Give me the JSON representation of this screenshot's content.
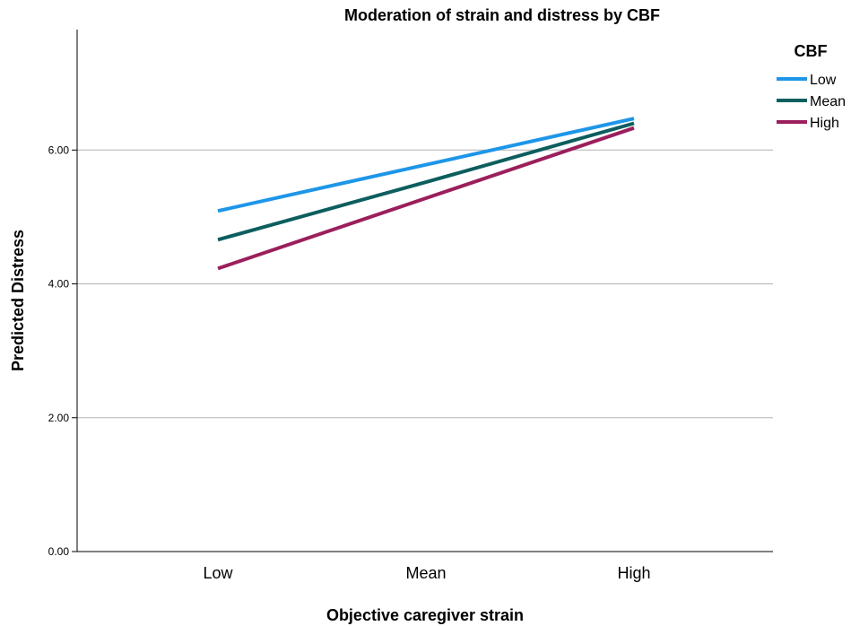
{
  "chart_data": {
    "type": "line",
    "title": "Moderation of strain and distress by CBF",
    "xlabel": "Objective caregiver strain",
    "ylabel": "Predicted Distress",
    "categories": [
      "Low",
      "Mean",
      "High"
    ],
    "ylim": [
      0,
      7.8
    ],
    "yticks": [
      "0.00",
      "2.00",
      "4.00",
      "6.00"
    ],
    "ytick_values": [
      0,
      2,
      4,
      6
    ],
    "grid": true,
    "legend_title": "CBF",
    "legend_position": "top-right",
    "series": [
      {
        "name": "Low",
        "color": "#1e96e8",
        "values": [
          5.09,
          5.78,
          6.47
        ]
      },
      {
        "name": "Mean",
        "color": "#0d5e5e",
        "values": [
          4.66,
          5.52,
          6.4
        ]
      },
      {
        "name": "High",
        "color": "#9b1f5c",
        "values": [
          4.23,
          5.28,
          6.33
        ]
      }
    ]
  }
}
